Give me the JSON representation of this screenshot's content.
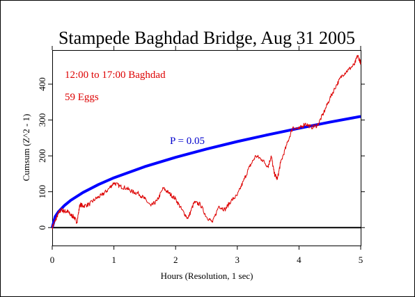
{
  "chart_data": {
    "type": "line",
    "title": "Stampede Baghdad Bridge, Aug 31 2005",
    "xlabel": "Hours (Resolution, 1 sec)",
    "ylabel": "Cumsum (Z^2 - 1)",
    "xlim": [
      0,
      5
    ],
    "ylim": [
      -50,
      495
    ],
    "x_ticks": [
      0,
      1,
      2,
      3,
      4,
      5
    ],
    "y_ticks": [
      0,
      100,
      200,
      300,
      400
    ],
    "grid": false,
    "legend": "none",
    "annotations": [
      {
        "text": "12:00 to 17:00 Baghdad",
        "color": "#dd0000"
      },
      {
        "text": "59 Eggs",
        "color": "#dd0000"
      },
      {
        "text": "P = 0.05",
        "color": "#0000cc"
      }
    ],
    "reference_line": {
      "y": 0,
      "color": "#000000"
    },
    "significance_curve": {
      "color": "#0000ff",
      "x": [
        0,
        0.05,
        0.1,
        0.2,
        0.3,
        0.5,
        0.75,
        1,
        1.5,
        2,
        2.5,
        3,
        3.5,
        4,
        4.5,
        5
      ],
      "y": [
        0,
        31,
        44,
        62,
        76,
        98,
        120,
        139,
        170,
        196,
        219,
        240,
        259,
        277,
        294,
        310
      ]
    },
    "series": [
      {
        "color": "#dd0000",
        "x": [
          0,
          0.05,
          0.1,
          0.15,
          0.2,
          0.25,
          0.3,
          0.35,
          0.4,
          0.45,
          0.5,
          0.6,
          0.7,
          0.8,
          0.9,
          1,
          1.1,
          1.2,
          1.3,
          1.4,
          1.5,
          1.6,
          1.7,
          1.8,
          1.9,
          2,
          2.1,
          2.2,
          2.3,
          2.4,
          2.5,
          2.6,
          2.7,
          2.8,
          2.9,
          3,
          3.1,
          3.2,
          3.3,
          3.4,
          3.5,
          3.55,
          3.6,
          3.65,
          3.7,
          3.8,
          3.9,
          4,
          4.1,
          4.2,
          4.3,
          4.4,
          4.5,
          4.6,
          4.7,
          4.8,
          4.9,
          4.95,
          5
        ],
        "y": [
          0,
          20,
          40,
          50,
          45,
          45,
          35,
          30,
          15,
          65,
          60,
          65,
          80,
          90,
          105,
          125,
          115,
          110,
          100,
          95,
          80,
          60,
          75,
          110,
          95,
          80,
          50,
          25,
          70,
          65,
          30,
          15,
          60,
          50,
          75,
          90,
          130,
          170,
          200,
          190,
          170,
          200,
          150,
          135,
          180,
          230,
          280,
          275,
          290,
          280,
          285,
          320,
          360,
          395,
          425,
          440,
          455,
          480,
          460
        ]
      }
    ]
  }
}
